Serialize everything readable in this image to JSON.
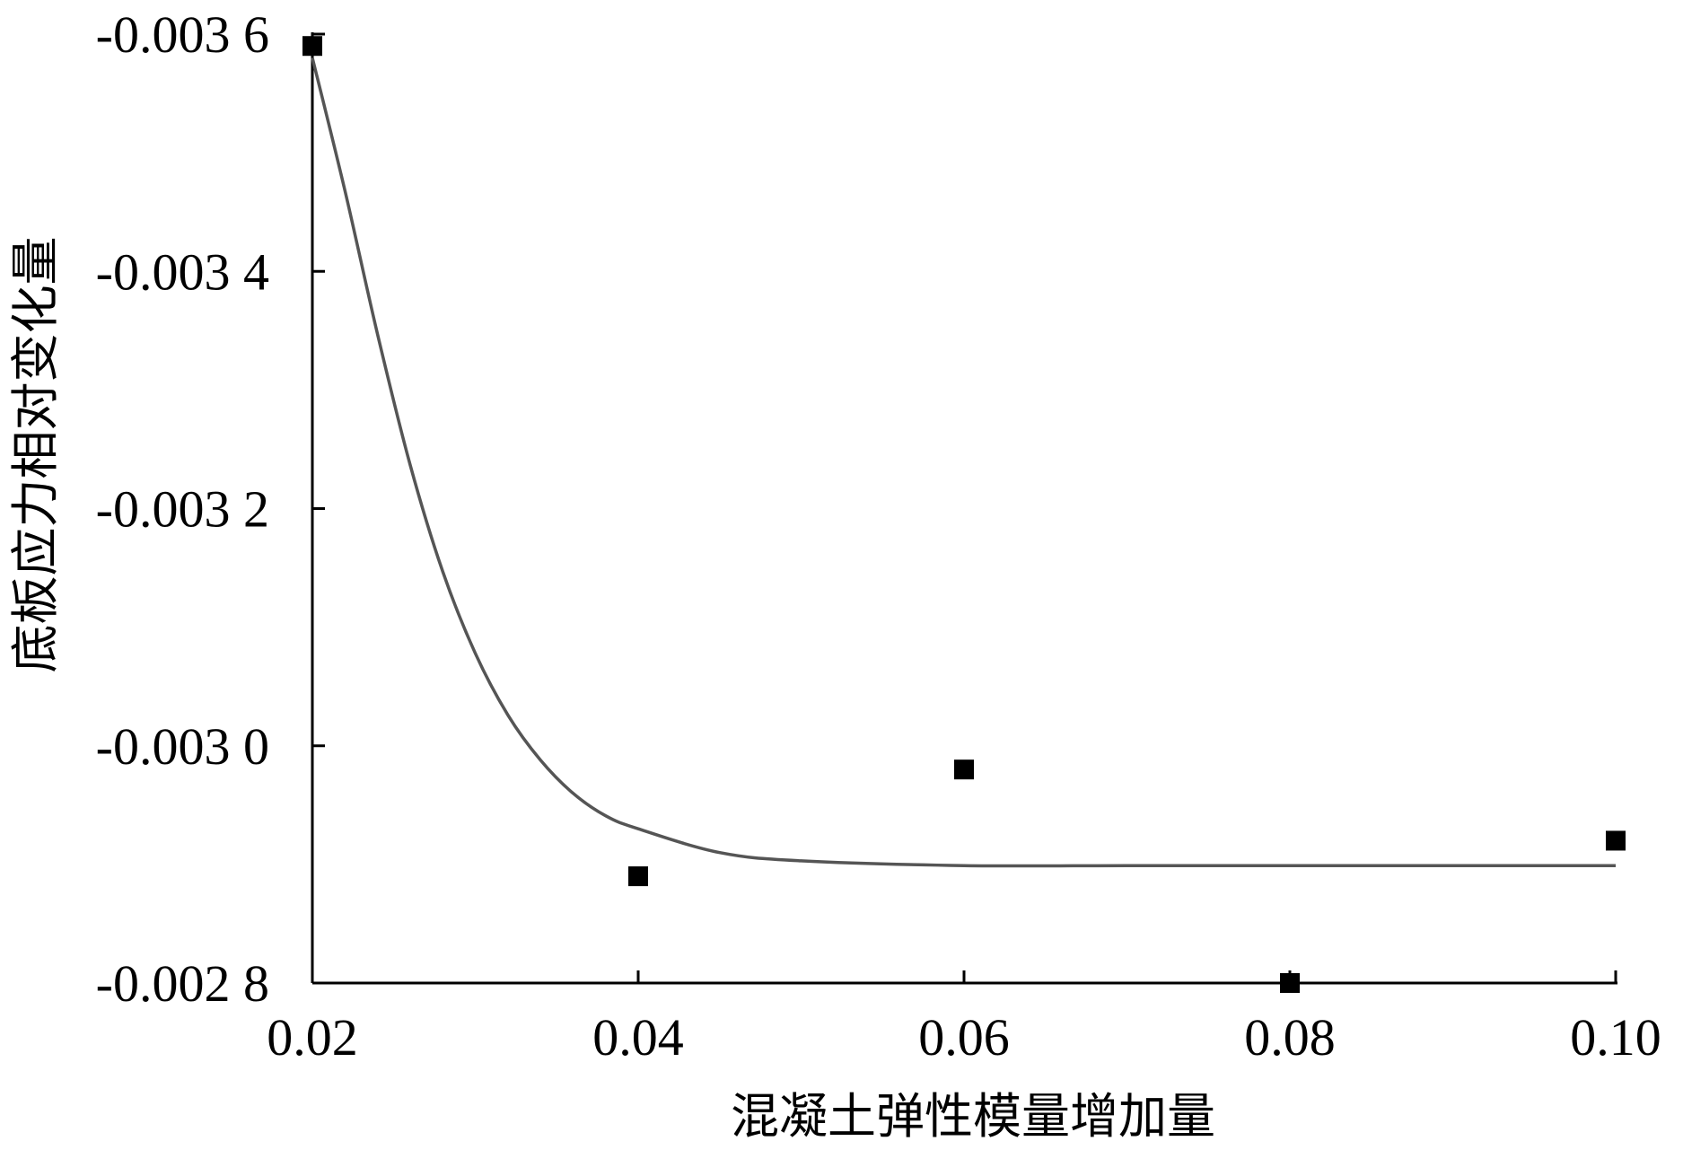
{
  "chart_data": {
    "type": "scatter",
    "title": "",
    "xlabel": "混凝土弹性模量增加量",
    "ylabel": "底板应力相对变化量",
    "xlim": [
      0.02,
      0.1
    ],
    "ylim": [
      -0.0028,
      -0.0036
    ],
    "y_axis_inverted": true,
    "x_ticks": [
      0.02,
      0.04,
      0.06,
      0.08,
      0.1
    ],
    "x_tick_labels": [
      "0.02",
      "0.04",
      "0.06",
      "0.08",
      "0.10"
    ],
    "y_ticks": [
      -0.0036,
      -0.0034,
      -0.0032,
      -0.003,
      -0.0028
    ],
    "y_tick_labels": [
      "-0.003 6",
      "-0.003 4",
      "-0.003 2",
      "-0.003 0",
      "-0.002 8"
    ],
    "grid": false,
    "legend": "none",
    "series": [
      {
        "type": "scatter",
        "marker": "square",
        "x": [
          0.02,
          0.04,
          0.06,
          0.08,
          0.1
        ],
        "y": [
          -0.00359,
          -0.00289,
          -0.00298,
          -0.0028,
          -0.00292
        ]
      },
      {
        "type": "line",
        "style": "smooth-fit",
        "x": [
          0.02,
          0.022,
          0.024,
          0.026,
          0.028,
          0.03,
          0.032,
          0.034,
          0.036,
          0.038,
          0.04,
          0.045,
          0.05,
          0.06,
          0.07,
          0.08,
          0.09,
          0.1
        ],
        "y": [
          -0.00358,
          -0.003468,
          -0.003347,
          -0.003237,
          -0.003147,
          -0.003078,
          -0.003026,
          -0.002988,
          -0.00296,
          -0.002941,
          -0.00293,
          -0.00291,
          -0.002903,
          -0.002899,
          -0.002899,
          -0.002899,
          -0.002899,
          -0.002899
        ]
      }
    ],
    "colors": {
      "markers": "#000000",
      "fit_line": "#555555",
      "axes": "#000000"
    }
  }
}
